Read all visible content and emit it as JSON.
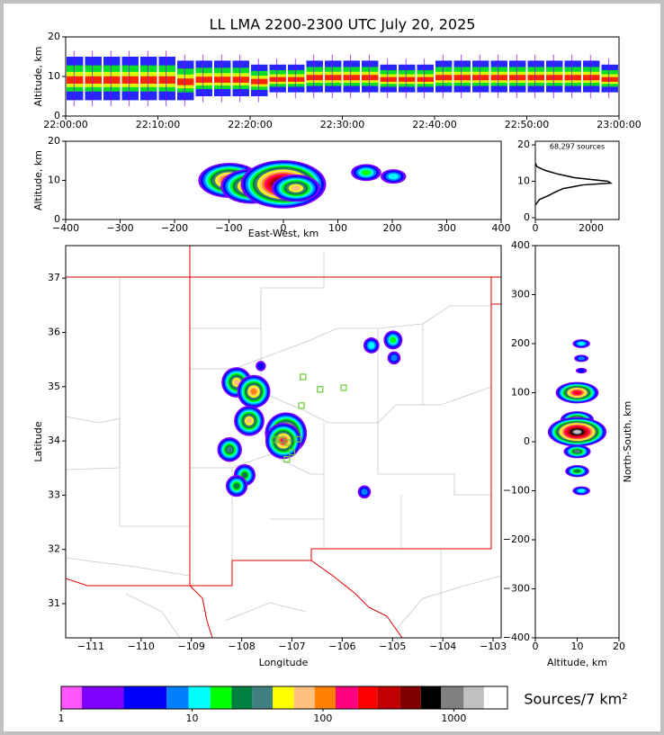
{
  "chart_data": [
    {
      "type": "strip",
      "title": "LL LMA 2200-2300 UTC July 20, 2025",
      "ylabel": "Altitude, km",
      "xlim": [
        0,
        60
      ],
      "xticks": [
        {
          "value": 0,
          "label": "22:00:00"
        },
        {
          "value": 10,
          "label": "22:10:00"
        },
        {
          "value": 20,
          "label": "22:20:00"
        },
        {
          "value": 30,
          "label": "22:30:00"
        },
        {
          "value": 40,
          "label": "22:40:00"
        },
        {
          "value": 50,
          "label": "22:50:00"
        },
        {
          "value": 60,
          "label": "23:00:00"
        }
      ],
      "ylim": [
        0,
        20
      ],
      "yticks": [
        0,
        10,
        20
      ],
      "x": [
        0,
        2,
        4,
        6,
        8,
        10,
        12,
        14,
        16,
        18,
        20,
        22,
        24,
        26,
        28,
        30,
        32,
        34,
        36,
        38,
        40,
        42,
        44,
        46,
        48,
        50,
        52,
        54,
        56,
        58
      ],
      "low": [
        4,
        4,
        4,
        4,
        4,
        4,
        4,
        5,
        5,
        5,
        5,
        6,
        6,
        6,
        6,
        6,
        6,
        6,
        6,
        6,
        6,
        6,
        6,
        6,
        6,
        6,
        6,
        6,
        6,
        6
      ],
      "high": [
        15,
        15,
        15,
        15,
        15,
        15,
        14,
        14,
        14,
        14,
        13,
        13,
        13,
        14,
        14,
        14,
        14,
        13,
        13,
        13,
        14,
        14,
        14,
        14,
        14,
        14,
        14,
        14,
        14,
        13
      ]
    },
    {
      "type": "blobs",
      "xlabel": "East-West, km",
      "ylabel": "Altitude, km",
      "xlim": [
        -400,
        400
      ],
      "xticks": [
        {
          "value": -400,
          "label": "−400"
        },
        {
          "value": -300,
          "label": "−300"
        },
        {
          "value": -200,
          "label": "−200"
        },
        {
          "value": -100,
          "label": "−100"
        },
        0,
        100,
        200,
        300,
        400
      ],
      "ylim": [
        0,
        20
      ],
      "yticks": [
        0,
        10,
        20
      ],
      "x": [
        -99,
        -58,
        0,
        23,
        152,
        202
      ],
      "y": [
        10,
        8.5,
        9,
        8,
        12,
        11
      ],
      "peak": [
        200,
        200,
        1500,
        60,
        15,
        10
      ]
    },
    {
      "type": "profile",
      "annotation": "68,297 sources",
      "xlim": [
        0,
        3000
      ],
      "xticks": [
        0,
        2000
      ],
      "ylim": [
        -0.5,
        21
      ],
      "yticks": [
        0,
        10,
        20
      ],
      "color": "#000000",
      "x": [
        0,
        150,
        450,
        700,
        1000,
        1700,
        2700,
        2600,
        1400,
        800,
        350,
        60,
        0
      ],
      "y": [
        3.5,
        5,
        6,
        7,
        8,
        9,
        9.5,
        10,
        11,
        12,
        13,
        14,
        15
      ]
    },
    {
      "type": "map",
      "xlabel": "Longitude",
      "ylabel": "Latitude",
      "xlim": [
        -111.5,
        -102.84
      ],
      "xticks": [
        {
          "value": -111,
          "label": "−111"
        },
        {
          "value": -110,
          "label": "−110"
        },
        {
          "value": -109,
          "label": "−109"
        },
        {
          "value": -108,
          "label": "−108"
        },
        {
          "value": -107,
          "label": "−107"
        },
        {
          "value": -106,
          "label": "−106"
        },
        {
          "value": -105,
          "label": "−105"
        },
        {
          "value": -104,
          "label": "−104"
        },
        {
          "value": -103,
          "label": "−103"
        }
      ],
      "ylim": [
        30.37,
        37.6
      ],
      "yticks": [
        31,
        32,
        33,
        34,
        35,
        36,
        37
      ],
      "x": [
        -108.1,
        -107.76,
        -107.85,
        -108.24,
        -107.94,
        -108.1,
        -107.12,
        -107.17,
        -104.99,
        -105.42,
        -104.97,
        -105.56,
        -107.62
      ],
      "y": [
        35.08,
        34.91,
        34.37,
        33.84,
        33.37,
        33.17,
        34.14,
        34.0,
        35.86,
        35.76,
        35.53,
        33.06,
        35.38
      ],
      "peak": [
        60,
        90,
        60,
        40,
        20,
        20,
        300,
        150,
        14,
        10,
        8,
        8,
        4
      ],
      "stations": {
        "color": "#66cc33",
        "x": [
          -106.78,
          -106.44,
          -105.97,
          -106.81,
          -107.35,
          -107.22,
          -107.08,
          -106.88,
          -107.0,
          -107.1
        ],
        "y": [
          35.18,
          34.95,
          34.98,
          34.65,
          34.02,
          34.02,
          33.97,
          34.03,
          33.79,
          33.66
        ]
      }
    },
    {
      "type": "blobs",
      "xlabel": "Altitude, km",
      "ylabel": "North-South, km",
      "ylabel_side": "right",
      "xlim": [
        0,
        20
      ],
      "xticks": [
        0,
        10,
        20
      ],
      "ylim": [
        -400,
        400
      ],
      "yticks": [
        {
          "value": -400,
          "label": "−400"
        },
        {
          "value": -300,
          "label": "−300"
        },
        {
          "value": -200,
          "label": "−200"
        },
        {
          "value": -100,
          "label": "−100"
        },
        0,
        100,
        200,
        300,
        400
      ],
      "x": [
        11,
        11,
        10,
        10,
        10,
        10,
        10,
        11,
        11
      ],
      "y": [
        200,
        170,
        100,
        45,
        20,
        -20,
        -60,
        -100,
        145
      ],
      "peak": [
        10,
        8,
        200,
        60,
        1500,
        40,
        20,
        12,
        5
      ]
    },
    {
      "type": "colorbar",
      "label": "Sources/7 km²",
      "log": true,
      "xlim": [
        1,
        2570
      ],
      "xticks": [
        1,
        10,
        100,
        1000
      ],
      "bounds": [
        1,
        1.44,
        3.0,
        6.4,
        9.4,
        13.8,
        20,
        28.7,
        41.4,
        60,
        86.5,
        125,
        185,
        260,
        390,
        560,
        800,
        1190,
        1700,
        2570
      ],
      "colors": [
        "#ff55ff",
        "#8000ff",
        "#0000ff",
        "#0080ff",
        "#00ffff",
        "#00ff00",
        "#008040",
        "#408080",
        "#ffff00",
        "#ffc080",
        "#ff8000",
        "#ff0080",
        "#ff0000",
        "#c00000",
        "#800000",
        "#000000",
        "#808080",
        "#c0c0c0",
        "#ffffff"
      ]
    }
  ]
}
